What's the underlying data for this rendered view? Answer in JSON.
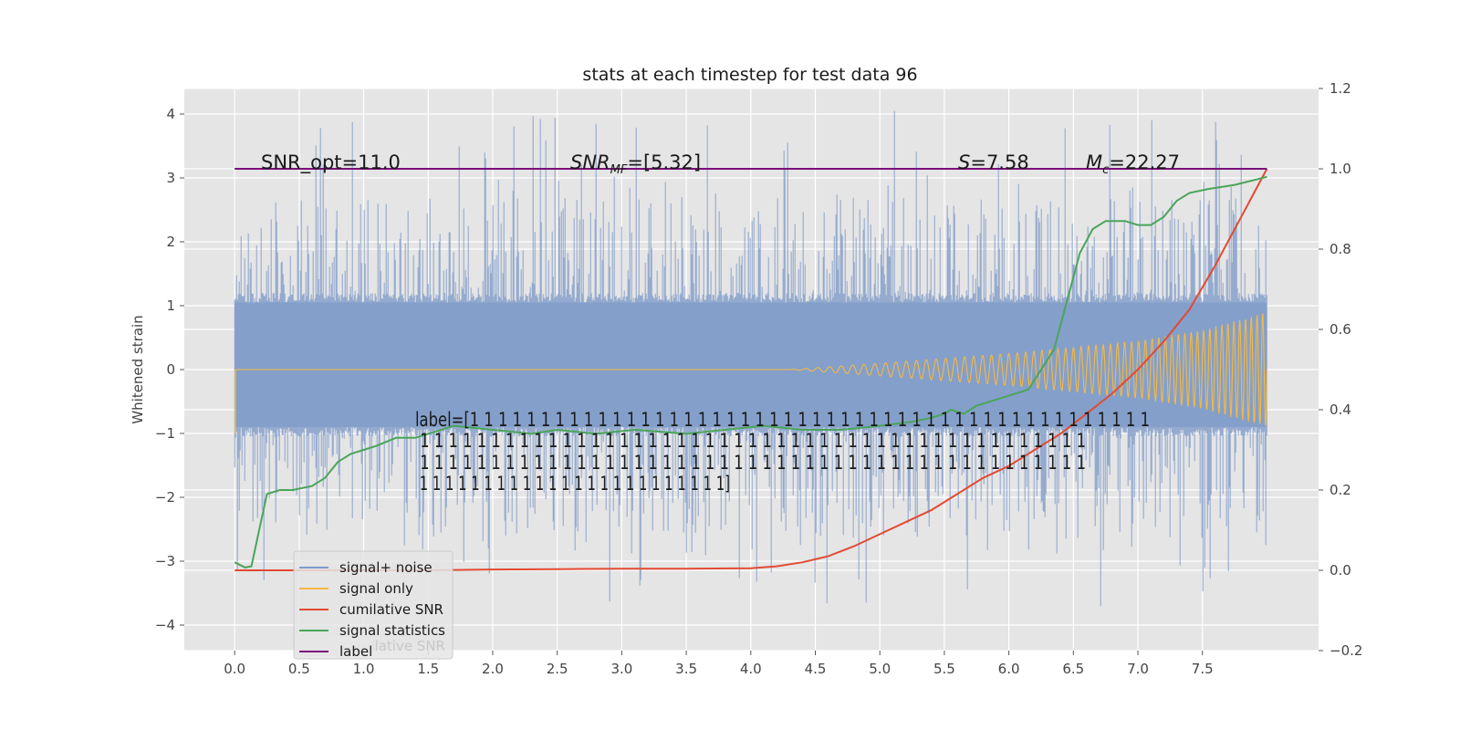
{
  "chart_data": {
    "type": "line",
    "title": "stats at each timestep for test data 96",
    "ylabel": "Whitened strain",
    "xlabel": "",
    "xlim": [
      -0.39,
      8.4
    ],
    "ylim": [
      -4.4,
      4.4
    ],
    "y2lim": [
      -0.2,
      1.2
    ],
    "x_ticks": [
      0.0,
      0.5,
      1.0,
      1.5,
      2.0,
      2.5,
      3.0,
      3.5,
      4.0,
      4.5,
      5.0,
      5.5,
      6.0,
      6.5,
      7.0,
      7.5
    ],
    "x_tick_labels": [
      "0.0",
      "0.5",
      "1.0",
      "1.5",
      "2.0",
      "2.5",
      "3.0",
      "3.5",
      "4.0",
      "4.5",
      "5.0",
      "5.5",
      "6.0",
      "6.5",
      "7.0",
      "7.5"
    ],
    "y_ticks": [
      4,
      3,
      2,
      1,
      0,
      -1,
      -2,
      -3,
      -4
    ],
    "y_tick_labels": [
      "4",
      "3",
      "2",
      "1",
      "0",
      "−1",
      "−2",
      "−3",
      "−4"
    ],
    "y2_ticks": [
      1.2,
      1.0,
      0.8,
      0.6,
      0.4,
      0.2,
      0.0,
      -0.2
    ],
    "y2_tick_labels": [
      "1.2",
      "1.0",
      "0.8",
      "0.6",
      "0.4",
      "0.2",
      "0.0",
      "−0.2"
    ],
    "grid": true,
    "legend_position": "lower-left",
    "colors": {
      "signal_noise": "#7f9bc8",
      "signal_only": "#f5b942",
      "cumulative_snr": "#e24a33",
      "signal_statistics": "#4aa55a",
      "label": "#7a0f7a",
      "axes_bg": "#e5e5e5"
    },
    "series": [
      {
        "name": "signal+ noise",
        "axis": "left",
        "x_range": [
          0.0,
          8.0
        ],
        "envelope": {
          "core_low": -0.9,
          "core_high": 1.05,
          "spike_max": 4.05,
          "spike_min": -3.8
        }
      },
      {
        "name": "signal only",
        "axis": "left",
        "x_range": [
          0.0,
          8.0
        ],
        "amplitude_points": [
          [
            0.0,
            0.0
          ],
          [
            4.3,
            0.0
          ],
          [
            5.0,
            0.1
          ],
          [
            6.0,
            0.25
          ],
          [
            7.0,
            0.45
          ],
          [
            7.5,
            0.62
          ],
          [
            8.0,
            0.9
          ]
        ]
      },
      {
        "name": "cumilative SNR",
        "axis": "right",
        "x": [
          0.0,
          0.5,
          1.0,
          1.5,
          2.0,
          2.5,
          3.0,
          3.5,
          4.0,
          4.2,
          4.4,
          4.6,
          4.8,
          5.0,
          5.2,
          5.4,
          5.6,
          5.8,
          6.0,
          6.2,
          6.4,
          6.6,
          6.8,
          7.0,
          7.2,
          7.4,
          7.6,
          7.7,
          7.8,
          7.9,
          8.0
        ],
        "values": [
          0.0,
          0.0,
          0.0,
          0.0,
          0.002,
          0.003,
          0.004,
          0.004,
          0.005,
          0.01,
          0.02,
          0.035,
          0.06,
          0.09,
          0.12,
          0.15,
          0.19,
          0.23,
          0.26,
          0.3,
          0.34,
          0.39,
          0.44,
          0.5,
          0.57,
          0.65,
          0.76,
          0.82,
          0.88,
          0.94,
          1.0
        ]
      },
      {
        "name": "signal statistics",
        "axis": "right",
        "x": [
          0.0,
          0.08,
          0.13,
          0.25,
          0.35,
          0.45,
          0.6,
          0.7,
          0.8,
          0.9,
          1.0,
          1.1,
          1.25,
          1.4,
          1.5,
          1.7,
          2.0,
          2.3,
          2.5,
          2.8,
          3.1,
          3.5,
          3.8,
          4.1,
          4.4,
          4.7,
          5.0,
          5.25,
          5.4,
          5.5,
          5.55,
          5.65,
          5.75,
          5.85,
          5.95,
          6.05,
          6.15,
          6.25,
          6.35,
          6.45,
          6.55,
          6.65,
          6.75,
          6.9,
          7.0,
          7.1,
          7.2,
          7.3,
          7.4,
          7.55,
          7.75,
          8.0
        ],
        "values": [
          0.02,
          0.007,
          0.01,
          0.19,
          0.2,
          0.2,
          0.21,
          0.23,
          0.27,
          0.29,
          0.3,
          0.31,
          0.33,
          0.33,
          0.34,
          0.36,
          0.35,
          0.34,
          0.35,
          0.34,
          0.35,
          0.34,
          0.35,
          0.36,
          0.35,
          0.35,
          0.36,
          0.37,
          0.38,
          0.39,
          0.4,
          0.39,
          0.41,
          0.42,
          0.43,
          0.44,
          0.45,
          0.5,
          0.55,
          0.67,
          0.79,
          0.85,
          0.87,
          0.87,
          0.86,
          0.86,
          0.88,
          0.92,
          0.94,
          0.95,
          0.96,
          0.98
        ]
      },
      {
        "name": "label",
        "axis": "right",
        "x": [
          0.0,
          8.0
        ],
        "values": [
          1.0,
          1.0
        ]
      }
    ],
    "annotations": {
      "snr_opt": "SNR_opt=11.0",
      "snr_mf": "SNR_MF=[5.32]",
      "s_value": "S=7.58",
      "mc_value": "M_c=22.27",
      "label_lines": [
        "label=[1 1 1 1 1 1 1 1 1 1 1 1 1 1 1 1 1 1 1 1 1 1 1 1 1 1 1 1 1 1 1 1 1 1 1 1 1 1 1 1 1 1 1 1 1 1 1 1",
        " 1 1 1 1 1 1 1 1 1 1 1 1 1 1 1 1 1 1 1 1 1 1 1 1 1 1 1 1 1 1 1 1 1 1 1 1 1 1 1 1 1 1 1 1 1 1 1",
        " 1 1 1 1 1 1 1 1 1 1 1 1 1 1 1 1 1 1 1 1 1 1 1 1 1 1 1 1 1 1 1 1 1 1 1 1 1 1 1 1 1 1 1 1 1 1 1",
        " 1 1 1 1 1 1 1 1 1 1 1 1 1 1 1 1 1 1 1 1 1 1 1 1]"
      ]
    },
    "legend": {
      "entries": [
        "signal+ noise",
        "signal only",
        "cumilative SNR",
        "signal statistics",
        "label"
      ],
      "behind_text": "cumilative SNR"
    }
  }
}
